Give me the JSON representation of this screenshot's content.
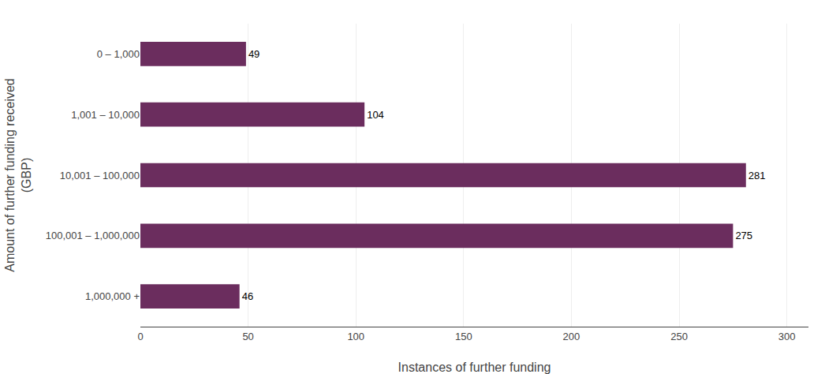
{
  "chart_data": {
    "type": "bar",
    "orientation": "horizontal",
    "categories": [
      "0 – 1,000",
      "1,001 – 10,000",
      "10,001 – 100,000",
      "100,001 – 1,000,000",
      "1,000,000 +"
    ],
    "values": [
      49,
      104,
      281,
      275,
      46
    ],
    "color": "#6B2D5E",
    "xlabel": "Instances of further funding",
    "ylabel": "Amount of further funding received\n(GBP)",
    "xlim": [
      0,
      310
    ],
    "xticks": [
      0,
      50,
      100,
      150,
      200,
      250,
      300
    ],
    "grid": true,
    "data_labels": true
  }
}
